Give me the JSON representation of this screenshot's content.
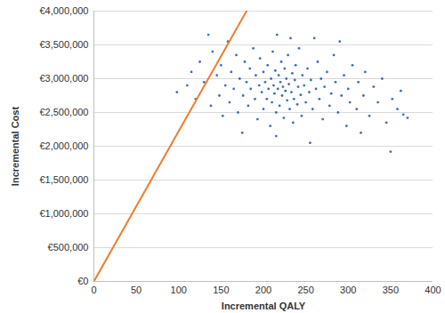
{
  "chart_data": {
    "type": "scatter",
    "x_label": "Incremental QALY",
    "y_label": "Incremental Cost",
    "xlim": [
      0,
      400
    ],
    "xticks": [
      0,
      50,
      100,
      150,
      200,
      250,
      300,
      350,
      400
    ],
    "ylim": [
      0,
      4000000
    ],
    "yticks": [
      {
        "value": 0,
        "label": "€0"
      },
      {
        "value": 500000,
        "label": "€500,000"
      },
      {
        "value": 1000000,
        "label": "€1,000,000"
      },
      {
        "value": 1500000,
        "label": "€1,500,000"
      },
      {
        "value": 2000000,
        "label": "€2,000,000"
      },
      {
        "value": 2500000,
        "label": "€2,500,000"
      },
      {
        "value": 3000000,
        "label": "€3,000,000"
      },
      {
        "value": 3500000,
        "label": "€3,500,000"
      },
      {
        "value": 4000000,
        "label": "€4,000,000"
      }
    ],
    "grid": true,
    "series": [
      {
        "type": "scatter",
        "color": "#3a6fb8",
        "marker": "circle",
        "x": [
          98,
          110,
          115,
          120,
          125,
          130,
          135,
          138,
          140,
          145,
          148,
          150,
          152,
          155,
          158,
          160,
          162,
          165,
          168,
          170,
          172,
          175,
          176,
          178,
          180,
          182,
          184,
          185,
          188,
          190,
          191,
          193,
          195,
          196,
          198,
          200,
          200,
          202,
          204,
          205,
          206,
          208,
          209,
          210,
          211,
          212,
          213,
          214,
          215,
          215,
          216,
          217,
          218,
          219,
          220,
          221,
          222,
          223,
          224,
          225,
          226,
          227,
          228,
          229,
          230,
          231,
          232,
          233,
          234,
          235,
          236,
          237,
          238,
          240,
          241,
          242,
          244,
          245,
          246,
          248,
          250,
          252,
          254,
          255,
          256,
          258,
          260,
          262,
          264,
          266,
          268,
          270,
          272,
          275,
          278,
          280,
          283,
          285,
          288,
          290,
          292,
          295,
          298,
          300,
          302,
          305,
          310,
          312,
          315,
          318,
          320,
          325,
          330,
          335,
          340,
          345,
          350,
          352,
          358,
          362,
          365,
          370
        ],
        "values": [
          2800000,
          2900000,
          3100000,
          2700000,
          3250000,
          2950000,
          3650000,
          2600000,
          3400000,
          3050000,
          2750000,
          3200000,
          2450000,
          2900000,
          3550000,
          2650000,
          3100000,
          2850000,
          3350000,
          2500000,
          3000000,
          2200000,
          2750000,
          3250000,
          2950000,
          2600000,
          3150000,
          2850000,
          3450000,
          2700000,
          3050000,
          2400000,
          2900000,
          3300000,
          2800000,
          2550000,
          3100000,
          2950000,
          2700000,
          3200000,
          2850000,
          2300000,
          3000000,
          2650000,
          3400000,
          2900000,
          2780000,
          3120000,
          2150000,
          2500000,
          3650000,
          2850000,
          3050000,
          2600000,
          2950000,
          3250000,
          2750000,
          2880000,
          2420000,
          3150000,
          2820000,
          3000000,
          2680000,
          3350000,
          2920000,
          2550000,
          3600000,
          2800000,
          3080000,
          2350000,
          2700000,
          2980000,
          3200000,
          2620000,
          2880000,
          3450000,
          2760000,
          2450000,
          3050000,
          2900000,
          2650000,
          3150000,
          2800000,
          2050000,
          2980000,
          2550000,
          3600000,
          2850000,
          3250000,
          2700000,
          3000000,
          2400000,
          2880000,
          3100000,
          2600000,
          2780000,
          3350000,
          2950000,
          2500000,
          3550000,
          2750000,
          3050000,
          2300000,
          2850000,
          2650000,
          3200000,
          2550000,
          2950000,
          2200000,
          2750000,
          3100000,
          2450000,
          2880000,
          2650000,
          3000000,
          2350000,
          1920000,
          2700000,
          2550000,
          2820000,
          2470000,
          2420000
        ]
      },
      {
        "type": "line",
        "color": "#ed7d31",
        "line_style": "solid",
        "x": [
          0,
          180
        ],
        "values": [
          0,
          4000000
        ]
      }
    ]
  }
}
